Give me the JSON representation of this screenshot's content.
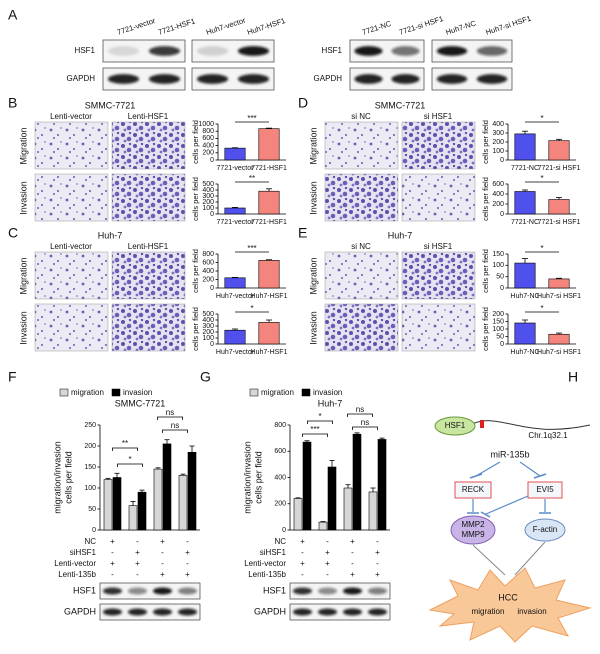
{
  "panel_labels": [
    "A",
    "B",
    "C",
    "D",
    "E",
    "F",
    "G",
    "H"
  ],
  "panel_a": {
    "row_labels_left": [
      "HSF1",
      "GAPDH"
    ],
    "row_labels_right": [
      "HSF1",
      "GAPDH"
    ],
    "lanes": [
      [
        "7721-vector",
        "7721-HSF1"
      ],
      [
        "Huh7-vector",
        "Huh7-HSF1"
      ],
      [
        "7721-NC",
        "7721-si HSF1"
      ],
      [
        "Huh7-NC",
        "Huh7-si HSF1"
      ]
    ]
  },
  "image_panels": [
    {
      "title": "SMMC-7721",
      "image_labels": [
        "Lenti-vector",
        "Lenti-HSF1"
      ],
      "row_labels": [
        "Migration",
        "Invasion"
      ]
    },
    {
      "title": "Huh-7",
      "image_labels": [
        "Lenti-vector",
        "Lenti-HSF1"
      ],
      "row_labels": [
        "Migration",
        "Invasion"
      ]
    },
    {
      "title": "SMMC-7721",
      "image_labels": [
        "si NC",
        "si HSF1"
      ],
      "row_labels": [
        "Migration",
        "Invasion"
      ]
    },
    {
      "title": "Huh-7",
      "image_labels": [
        "si NC",
        "si HSF1"
      ],
      "row_labels": [
        "Migration",
        "Invasion"
      ]
    }
  ],
  "treatments": [
    {
      "rows": [
        {
          "name": "NC",
          "marks": [
            "+",
            "-",
            "+",
            "-"
          ]
        },
        {
          "name": "siHSF1",
          "marks": [
            "-",
            "+",
            "-",
            "+"
          ]
        },
        {
          "name": "Lenti-vector",
          "marks": [
            "+",
            "+",
            "-",
            "-"
          ]
        },
        {
          "name": "Lenti-135b",
          "marks": [
            "-",
            "-",
            "+",
            "+"
          ]
        }
      ],
      "blot_labels": [
        "HSF1",
        "GAPDH"
      ]
    },
    {
      "rows": [
        {
          "name": "NC",
          "marks": [
            "+",
            "-",
            "+",
            "-"
          ]
        },
        {
          "name": "siHSF1",
          "marks": [
            "-",
            "+",
            "-",
            "+"
          ]
        },
        {
          "name": "Lenti-vector",
          "marks": [
            "+",
            "+",
            "-",
            "-"
          ]
        },
        {
          "name": "Lenti-135b",
          "marks": [
            "-",
            "-",
            "+",
            "+"
          ]
        }
      ],
      "blot_labels": [
        "HSF1",
        "GAPDH"
      ]
    }
  ],
  "chart_data": [
    {
      "type": "bar",
      "ylabel": "cells per field",
      "categories": [
        "7721-vector",
        "7721-HSF1"
      ],
      "values": [
        330,
        870
      ],
      "errors": [
        10,
        15
      ],
      "colors": [
        "#5050ec",
        "#f4857d"
      ],
      "ylim": [
        0,
        1000
      ],
      "yticks": [
        0,
        200,
        400,
        600,
        800,
        1000
      ],
      "annotation": "***"
    },
    {
      "type": "bar",
      "ylabel": "cells per field",
      "categories": [
        "7721-vector",
        "7721-HSF1"
      ],
      "values": [
        100,
        380
      ],
      "errors": [
        10,
        40
      ],
      "colors": [
        "#5050ec",
        "#f4857d"
      ],
      "ylim": [
        0,
        500
      ],
      "yticks": [
        0,
        100,
        200,
        300,
        400,
        500
      ],
      "annotation": "**"
    },
    {
      "type": "bar",
      "ylabel": "cells per field",
      "categories": [
        "Huh7-vector",
        "Huh7-HSF1"
      ],
      "values": [
        240,
        650
      ],
      "errors": [
        10,
        15
      ],
      "colors": [
        "#5050ec",
        "#f4857d"
      ],
      "ylim": [
        0,
        800
      ],
      "yticks": [
        0,
        200,
        400,
        600,
        800
      ],
      "annotation": "***"
    },
    {
      "type": "bar",
      "ylabel": "cells per field",
      "categories": [
        "Huh7-vector",
        "Huh7-HSF1"
      ],
      "values": [
        230,
        360
      ],
      "errors": [
        20,
        40
      ],
      "colors": [
        "#5050ec",
        "#f4857d"
      ],
      "ylim": [
        0,
        500
      ],
      "yticks": [
        0,
        100,
        200,
        300,
        400,
        500
      ],
      "annotation": "*"
    },
    {
      "type": "bar",
      "ylabel": "cells per field",
      "categories": [
        "7721-NC",
        "7721-si HSF1"
      ],
      "values": [
        290,
        215
      ],
      "errors": [
        30,
        15
      ],
      "colors": [
        "#5050ec",
        "#f4857d"
      ],
      "ylim": [
        0,
        400
      ],
      "yticks": [
        0,
        100,
        200,
        300,
        400
      ],
      "annotation": "*"
    },
    {
      "type": "bar",
      "ylabel": "cells per field",
      "categories": [
        "7721-NC",
        "7721-si HSF1"
      ],
      "values": [
        450,
        290
      ],
      "errors": [
        30,
        40
      ],
      "colors": [
        "#5050ec",
        "#f4857d"
      ],
      "ylim": [
        0,
        600
      ],
      "yticks": [
        0,
        200,
        400,
        600
      ],
      "annotation": "*"
    },
    {
      "type": "bar",
      "ylabel": "cells per field",
      "categories": [
        "Huh7-NC",
        "Huh7-si HSF1"
      ],
      "values": [
        110,
        40
      ],
      "errors": [
        20,
        3
      ],
      "colors": [
        "#5050ec",
        "#f4857d"
      ],
      "ylim": [
        0,
        150
      ],
      "yticks": [
        0,
        50,
        100,
        150
      ],
      "annotation": "*"
    },
    {
      "type": "bar",
      "ylabel": "cells per field",
      "categories": [
        "Huh7-NC",
        "Huh7-si HSF1"
      ],
      "values": [
        140,
        65
      ],
      "errors": [
        20,
        8
      ],
      "colors": [
        "#5050ec",
        "#f4857d"
      ],
      "ylim": [
        0,
        200
      ],
      "yticks": [
        0,
        50,
        100,
        150,
        200
      ],
      "annotation": "*"
    },
    {
      "type": "grouped",
      "title": "SMMC-7721",
      "ylabel": [
        "migration/invasion",
        "cells per field"
      ],
      "categories": [
        null,
        null,
        null,
        null
      ],
      "series": [
        {
          "name": "migration",
          "color": "#d6d6d6",
          "values": [
            120,
            58,
            145,
            130
          ],
          "errors": [
            3,
            10,
            3,
            3
          ]
        },
        {
          "name": "invasion",
          "color": "#000000",
          "values": [
            125,
            90,
            205,
            185
          ],
          "errors": [
            10,
            5,
            10,
            15
          ]
        }
      ],
      "ylim": [
        0,
        250
      ],
      "yticks": [
        0,
        50,
        100,
        150,
        200,
        250
      ],
      "annotations": [
        "**",
        "*",
        "ns",
        "ns"
      ]
    },
    {
      "type": "grouped",
      "title": "Huh-7",
      "ylabel": [
        "migration/invasion",
        "cells per field"
      ],
      "categories": [
        null,
        null,
        null,
        null
      ],
      "series": [
        {
          "name": "migration",
          "color": "#d6d6d6",
          "values": [
            240,
            60,
            320,
            290
          ],
          "errors": [
            5,
            5,
            25,
            30
          ]
        },
        {
          "name": "invasion",
          "color": "#000000",
          "values": [
            670,
            480,
            730,
            690
          ],
          "errors": [
            10,
            50,
            10,
            10
          ]
        }
      ],
      "ylim": [
        0,
        800
      ],
      "yticks": [
        0,
        200,
        400,
        600,
        800
      ],
      "annotations": [
        "***",
        "*",
        "ns",
        "ns"
      ]
    }
  ],
  "panel_h": {
    "nodes": [
      "HSF1",
      "Chr.1q32.1",
      "miR-135b",
      "RECK",
      "EVI5",
      "MMP2",
      "MMP9",
      "F-actin",
      "HCC",
      "migration",
      "invasion"
    ]
  }
}
